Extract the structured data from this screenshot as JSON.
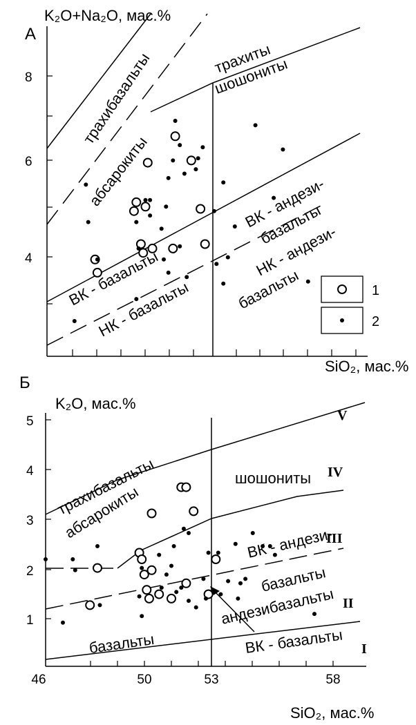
{
  "colors": {
    "ink": "#000000",
    "background": "#ffffff"
  },
  "chart_data": [
    {
      "type": "scatter",
      "panel_label": "А",
      "ylabel": "K₂O+Na₂O, мас.%",
      "xlabel": "SiO₂, мас.%",
      "xlim": [
        46,
        60
      ],
      "ylim": [
        2.0,
        9.5
      ],
      "y_ticks": [
        "4",
        "6",
        "8"
      ],
      "field_labels": [
        "трахибазальты",
        "трахиты",
        "шошониты",
        "абсарокиты",
        "ВК - андези-",
        "базальты",
        "НК - андези-",
        "ВК - базальты",
        "НК - базальты",
        "базальты"
      ],
      "legend": [
        {
          "label": "1",
          "marker": "open-circle"
        },
        {
          "label": "2",
          "marker": "dot"
        }
      ],
      "series": [
        {
          "marker": "open-circle",
          "points": [
            [
              48.1,
              4.2
            ],
            [
              48.2,
              3.9
            ],
            [
              49.9,
              5.5
            ],
            [
              49.8,
              5.3
            ],
            [
              50.3,
              5.4
            ],
            [
              50.4,
              6.4
            ],
            [
              50.1,
              4.55
            ],
            [
              50.2,
              4.35
            ],
            [
              50.6,
              4.45
            ],
            [
              51.5,
              4.45
            ],
            [
              51.6,
              7.0
            ],
            [
              52.3,
              6.45
            ],
            [
              52.7,
              5.35
            ],
            [
              52.9,
              4.55
            ]
          ]
        },
        {
          "marker": "dot",
          "points": [
            [
              47.2,
              2.8
            ],
            [
              47.7,
              5.9
            ],
            [
              47.8,
              5.05
            ],
            [
              48.2,
              4.2
            ],
            [
              49.9,
              5.05
            ],
            [
              50.0,
              4.45
            ],
            [
              49.9,
              3.3
            ],
            [
              50.3,
              5.55
            ],
            [
              50.5,
              5.2
            ],
            [
              50.5,
              5.55
            ],
            [
              51.0,
              4.9
            ],
            [
              51.2,
              5.4
            ],
            [
              51.1,
              4.2
            ],
            [
              51.3,
              3.9
            ],
            [
              51.3,
              6.05
            ],
            [
              51.5,
              6.45
            ],
            [
              51.6,
              7.35
            ],
            [
              51.8,
              6.8
            ],
            [
              51.8,
              4.5
            ],
            [
              52.0,
              6.15
            ],
            [
              52.1,
              3.8
            ],
            [
              52.5,
              6.25
            ],
            [
              52.6,
              6.5
            ],
            [
              52.8,
              6.75
            ],
            [
              53.3,
              5.3
            ],
            [
              53.4,
              4.1
            ],
            [
              53.7,
              5.95
            ],
            [
              53.7,
              3.65
            ],
            [
              53.9,
              4.25
            ],
            [
              54.2,
              4.95
            ],
            [
              55.1,
              7.25
            ],
            [
              55.9,
              5.6
            ],
            [
              56.3,
              6.7
            ],
            [
              57.4,
              3.7
            ]
          ]
        }
      ]
    },
    {
      "type": "scatter",
      "panel_label": "Б",
      "ylabel": "K₂O, мас.%",
      "xlabel": "SiO₂, мас.%",
      "xlim": [
        46,
        59
      ],
      "ylim": [
        0,
        5.8
      ],
      "x_ticks": [
        "46",
        "50",
        "53",
        "58"
      ],
      "y_ticks": [
        "1",
        "2",
        "3",
        "4",
        "5"
      ],
      "field_labels": [
        "трахибазальты",
        "абсарокиты",
        "шошониты",
        "ВК - андези-",
        "базальты",
        "андезибазальты",
        "базальты",
        "ВК - базальты"
      ],
      "region_numerals": [
        "V",
        "IV",
        "III",
        "II",
        "I"
      ],
      "series": [
        {
          "marker": "open-circle",
          "points": [
            [
              47.8,
              1.4
            ],
            [
              48.1,
              2.25
            ],
            [
              49.8,
              2.6
            ],
            [
              49.9,
              2.45
            ],
            [
              50.0,
              2.1
            ],
            [
              50.3,
              3.5
            ],
            [
              50.1,
              1.75
            ],
            [
              50.2,
              1.55
            ],
            [
              50.6,
              1.65
            ],
            [
              51.1,
              1.55
            ],
            [
              51.7,
              1.9
            ],
            [
              51.5,
              4.1
            ],
            [
              51.7,
              4.1
            ],
            [
              52.0,
              3.55
            ],
            [
              52.9,
              2.45
            ],
            [
              52.6,
              1.65
            ],
            [
              50.3,
              2.2
            ]
          ]
        },
        {
          "marker": "dot",
          "points": [
            [
              46.0,
              2.45
            ],
            [
              46.7,
              1.0
            ],
            [
              47.1,
              2.45
            ],
            [
              47.2,
              2.2
            ],
            [
              48.1,
              2.75
            ],
            [
              48.2,
              1.4
            ],
            [
              49.9,
              1.15
            ],
            [
              49.9,
              2.25
            ],
            [
              49.8,
              1.6
            ],
            [
              50.6,
              2.55
            ],
            [
              50.7,
              1.8
            ],
            [
              50.9,
              2.1
            ],
            [
              51.1,
              2.3
            ],
            [
              51.2,
              2.75
            ],
            [
              51.3,
              1.7
            ],
            [
              51.5,
              1.8
            ],
            [
              51.6,
              3.15
            ],
            [
              51.8,
              3.05
            ],
            [
              51.8,
              1.5
            ],
            [
              52.1,
              1.35
            ],
            [
              52.4,
              2.0
            ],
            [
              52.5,
              1.55
            ],
            [
              52.6,
              2.6
            ],
            [
              53.0,
              2.6
            ],
            [
              53.1,
              1.65
            ],
            [
              53.4,
              1.95
            ],
            [
              53.7,
              2.8
            ],
            [
              53.8,
              1.55
            ],
            [
              53.9,
              1.9
            ],
            [
              54.1,
              2.0
            ],
            [
              54.4,
              3.05
            ],
            [
              54.8,
              2.75
            ],
            [
              55.1,
              2.75
            ],
            [
              55.3,
              2.55
            ],
            [
              56.9,
              1.2
            ]
          ]
        }
      ]
    }
  ]
}
